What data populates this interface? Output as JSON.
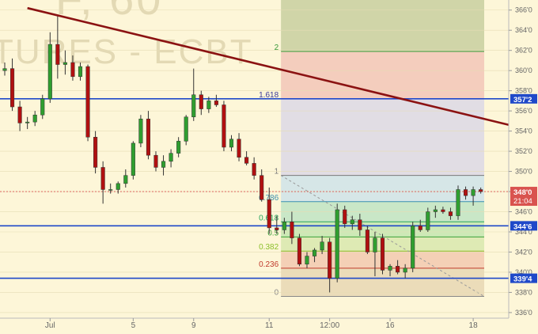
{
  "watermark": {
    "line1": "F, 60",
    "line2": "TURES - ECBT"
  },
  "colors": {
    "background": "#fdf6d8",
    "bull": "#2f9e2f",
    "bear": "#b01010",
    "wick": "#333333",
    "trendline": "#8b1212",
    "hline": "#1f49c9",
    "grid": "#e6dcb4",
    "axis_text": "#666666",
    "price_badge": "#d9534f",
    "hline_badge": "#1f49c9"
  },
  "chart_data": {
    "type": "candlestick",
    "y_axis": {
      "min": 335.6,
      "max": 367.0,
      "ticks": [
        "366'0",
        "364'0",
        "362'0",
        "360'0",
        "358'0",
        "356'0",
        "354'0",
        "352'0",
        "350'0",
        "348'0",
        "346'0",
        "344'0",
        "342'0",
        "340'0",
        "338'0",
        "336'0"
      ]
    },
    "x_axis": {
      "labels": [
        "Jul",
        "5",
        "9",
        "11",
        "12:00",
        "16",
        "18"
      ],
      "label_bar_index": [
        6,
        17,
        25,
        35,
        43,
        51,
        62
      ],
      "bar_count": 64
    },
    "candles": [
      [
        360.0,
        360.8,
        359.5,
        360.2
      ],
      [
        360.2,
        361.2,
        356.0,
        356.4
      ],
      [
        356.4,
        357.0,
        354.0,
        354.8
      ],
      [
        354.8,
        355.4,
        354.2,
        354.9
      ],
      [
        354.9,
        356.0,
        354.5,
        355.6
      ],
      [
        355.6,
        357.6,
        355.2,
        357.2
      ],
      [
        357.2,
        363.8,
        356.8,
        362.6
      ],
      [
        362.6,
        365.5,
        359.2,
        360.6
      ],
      [
        360.6,
        362.0,
        359.6,
        360.8
      ],
      [
        360.8,
        361.5,
        359.0,
        359.4
      ],
      [
        359.4,
        360.8,
        359.0,
        360.4
      ],
      [
        360.4,
        360.6,
        353.0,
        353.4
      ],
      [
        353.4,
        354.0,
        349.8,
        350.4
      ],
      [
        350.4,
        351.0,
        346.8,
        348.2
      ],
      [
        348.2,
        348.8,
        347.8,
        348.2
      ],
      [
        348.2,
        349.0,
        347.8,
        348.8
      ],
      [
        348.8,
        350.2,
        348.4,
        349.6
      ],
      [
        349.6,
        353.0,
        349.2,
        352.8
      ],
      [
        352.8,
        355.6,
        352.4,
        355.2
      ],
      [
        355.2,
        356.0,
        351.2,
        351.6
      ],
      [
        351.6,
        352.0,
        350.0,
        350.4
      ],
      [
        350.4,
        351.6,
        349.6,
        351.0
      ],
      [
        351.0,
        352.2,
        350.4,
        351.8
      ],
      [
        351.8,
        353.4,
        351.4,
        353.0
      ],
      [
        353.0,
        355.6,
        352.6,
        355.4
      ],
      [
        355.4,
        360.2,
        355.0,
        357.6
      ],
      [
        357.6,
        358.0,
        355.6,
        356.2
      ],
      [
        356.2,
        357.4,
        355.8,
        357.0
      ],
      [
        357.0,
        357.6,
        356.4,
        356.6
      ],
      [
        356.6,
        357.0,
        352.0,
        352.4
      ],
      [
        352.4,
        353.6,
        352.0,
        353.2
      ],
      [
        353.2,
        353.8,
        351.0,
        351.4
      ],
      [
        351.4,
        352.0,
        350.6,
        350.8
      ],
      [
        350.8,
        351.4,
        349.2,
        349.6
      ],
      [
        349.6,
        350.2,
        347.0,
        347.2
      ],
      [
        347.2,
        348.4,
        343.8,
        344.4
      ],
      [
        344.4,
        345.6,
        343.8,
        344.2
      ],
      [
        344.2,
        345.4,
        343.8,
        345.0
      ],
      [
        345.0,
        346.0,
        342.8,
        343.4
      ],
      [
        343.4,
        343.8,
        340.6,
        340.8
      ],
      [
        340.8,
        342.0,
        340.4,
        341.6
      ],
      [
        341.6,
        342.4,
        341.0,
        342.2
      ],
      [
        342.2,
        343.6,
        341.8,
        343.0
      ],
      [
        343.0,
        343.4,
        338.0,
        339.4
      ],
      [
        339.4,
        346.8,
        339.0,
        346.2
      ],
      [
        346.2,
        346.6,
        344.4,
        344.8
      ],
      [
        344.8,
        345.6,
        344.2,
        345.2
      ],
      [
        345.2,
        345.8,
        343.6,
        344.2
      ],
      [
        344.2,
        344.6,
        341.8,
        342.0
      ],
      [
        342.0,
        344.0,
        339.6,
        343.4
      ],
      [
        343.4,
        343.8,
        339.8,
        340.2
      ],
      [
        340.2,
        340.8,
        339.6,
        340.6
      ],
      [
        340.6,
        341.2,
        339.8,
        340.0
      ],
      [
        340.0,
        340.8,
        339.4,
        340.4
      ],
      [
        340.4,
        345.0,
        340.0,
        344.6
      ],
      [
        344.6,
        345.2,
        344.0,
        344.2
      ],
      [
        344.2,
        346.4,
        344.0,
        346.0
      ],
      [
        346.0,
        346.6,
        345.4,
        346.2
      ],
      [
        346.2,
        346.5,
        345.8,
        346.0
      ],
      [
        346.0,
        346.4,
        345.2,
        345.6
      ],
      [
        345.6,
        348.6,
        345.2,
        348.2
      ],
      [
        348.2,
        348.5,
        347.2,
        347.6
      ],
      [
        347.6,
        348.5,
        346.6,
        348.2
      ],
      [
        348.2,
        348.4,
        347.8,
        348.0
      ]
    ],
    "horizontal_lines": [
      {
        "value": 357.2,
        "label": "357'2"
      },
      {
        "value": 344.6,
        "label": "344'6"
      },
      {
        "value": 339.4,
        "label": "339'4"
      }
    ],
    "current_price": {
      "value": 348.0,
      "label": "348'0",
      "countdown": "21:04"
    },
    "trendline": {
      "from_bar": 3,
      "from_value": 366.2,
      "to_bar": 80,
      "to_value": 352.2
    },
    "fibonacci": {
      "anchor_low_bar": 53,
      "levels": [
        {
          "ratio": "0",
          "value": 337.6,
          "fill": "#e8d7b4"
        },
        {
          "ratio": "0.236",
          "value": 340.4,
          "fill": "#f2c9b0"
        },
        {
          "ratio": "0.382",
          "value": 342.1,
          "fill": "#d8e8ae"
        },
        {
          "ratio": "0.5",
          "value": 343.5,
          "fill": "#c4e6b0"
        },
        {
          "ratio": "0.618",
          "value": 345.0,
          "fill": "#bfe4c4"
        },
        {
          "ratio": "0.786",
          "value": 347.0,
          "fill": "#cfe3ea"
        },
        {
          "ratio": "1",
          "value": 349.6,
          "fill": "#dcd8e6"
        },
        {
          "ratio": "1.618",
          "value": 357.2,
          "fill": "#f2c6b8"
        },
        {
          "ratio": "2",
          "value": 361.9,
          "fill": "#c8cfa0"
        }
      ],
      "top_value": 367.0
    }
  }
}
